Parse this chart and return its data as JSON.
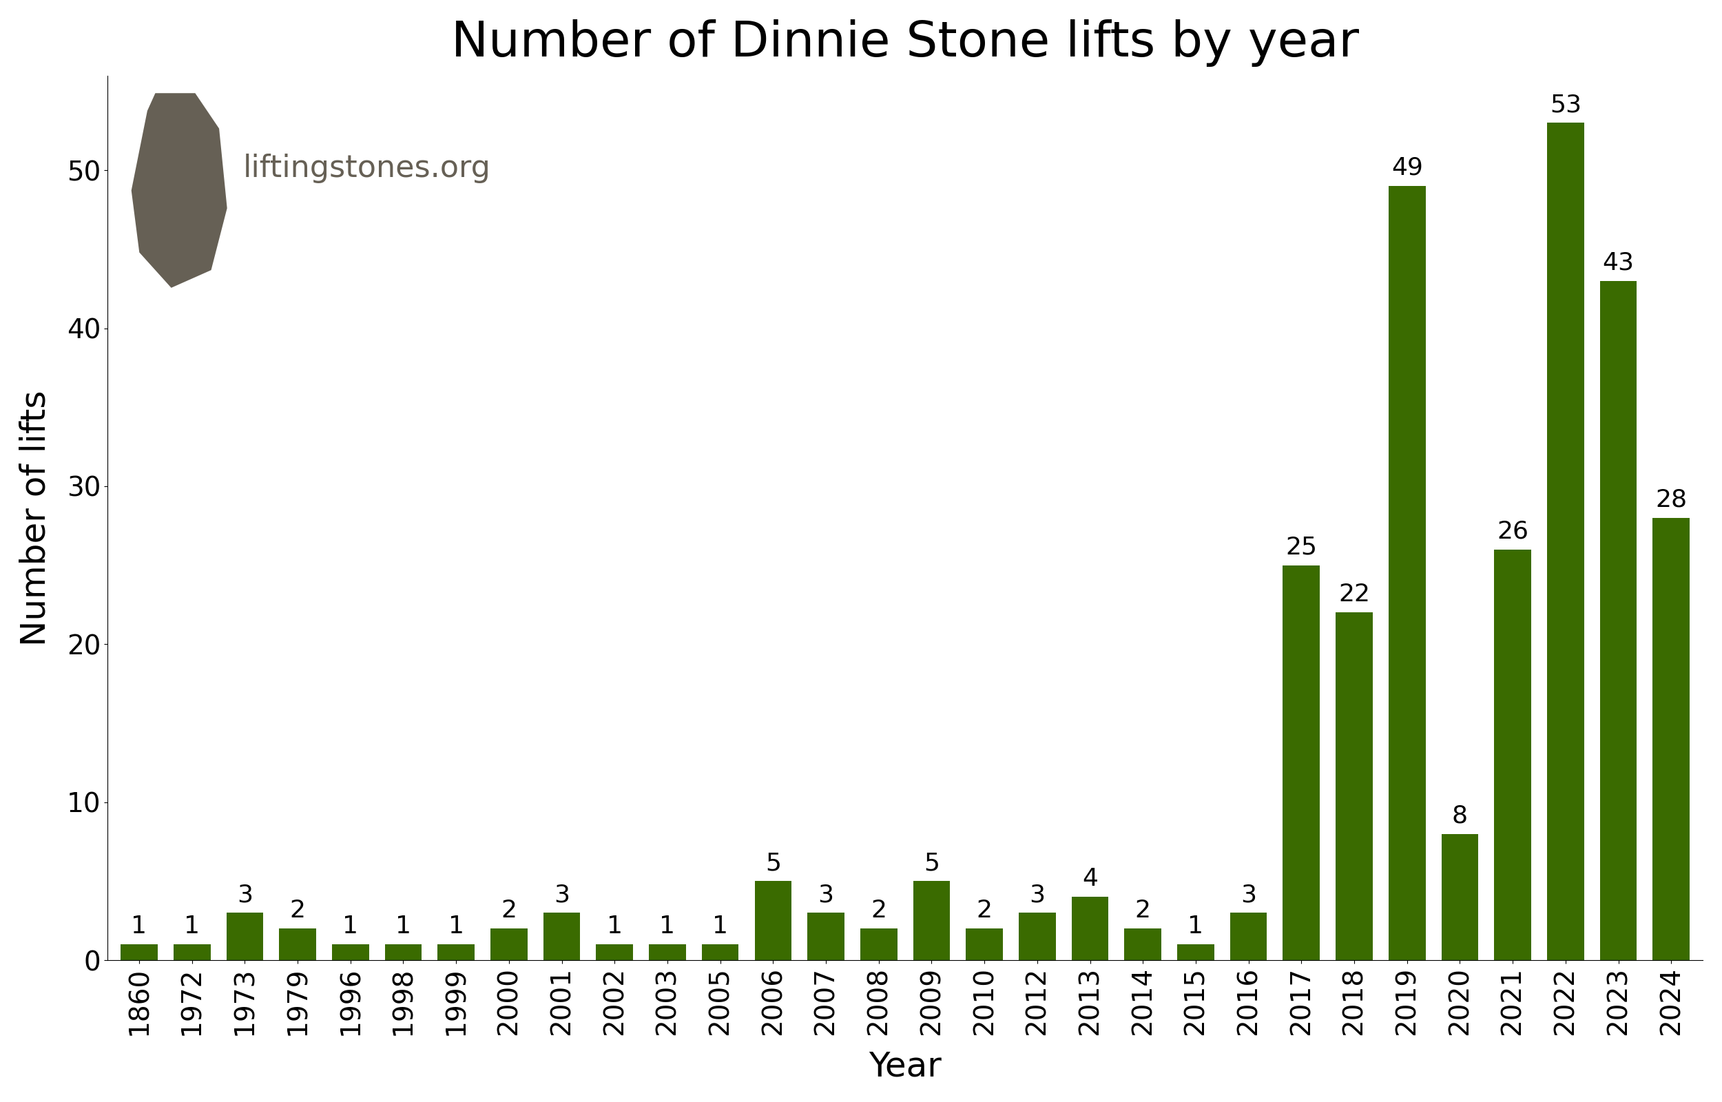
{
  "title": "Number of Dinnie Stone lifts by year",
  "xlabel": "Year",
  "ylabel": "Number of lifts",
  "watermark": "liftingstones.org",
  "bar_color": "#3a6b00",
  "years": [
    "1860",
    "1972",
    "1973",
    "1979",
    "1996",
    "1998",
    "1999",
    "2000",
    "2001",
    "2002",
    "2003",
    "2005",
    "2006",
    "2007",
    "2008",
    "2009",
    "2010",
    "2012",
    "2013",
    "2014",
    "2015",
    "2016",
    "2017",
    "2018",
    "2019",
    "2020",
    "2021",
    "2022",
    "2023",
    "2024"
  ],
  "values": [
    1,
    1,
    3,
    2,
    1,
    1,
    1,
    2,
    3,
    1,
    1,
    1,
    5,
    3,
    2,
    5,
    2,
    3,
    4,
    2,
    1,
    3,
    25,
    22,
    49,
    8,
    26,
    53,
    43,
    28
  ],
  "ylim": [
    0,
    56
  ],
  "yticks": [
    0,
    10,
    20,
    30,
    40,
    50
  ],
  "title_fontsize": 26,
  "axis_label_fontsize": 18,
  "tick_fontsize": 14,
  "annotation_fontsize": 13,
  "watermark_fontsize": 16,
  "background_color": "#ffffff",
  "stone_color": "#666055"
}
